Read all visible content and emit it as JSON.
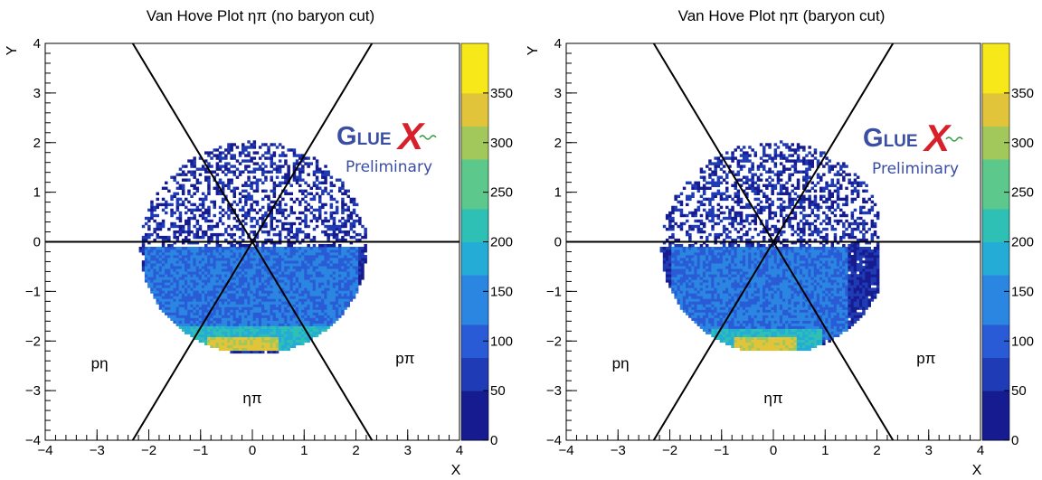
{
  "chart_data": [
    {
      "type": "heatmap",
      "title": "Van Hove Plot ηπ (no baryon cut)",
      "xlabel": "X",
      "ylabel": "Y",
      "xlim": [
        -4,
        4
      ],
      "ylim": [
        -4,
        4
      ],
      "x_ticks": [
        "−4",
        "−3",
        "−2",
        "−1",
        "0",
        "1",
        "2",
        "3",
        "4"
      ],
      "y_ticks": [
        "−4",
        "−3",
        "−2",
        "−1",
        "0",
        "1",
        "2",
        "3",
        "4"
      ],
      "colorbar": {
        "range": [
          0,
          400
        ],
        "ticks": [
          "0",
          "50",
          "100",
          "150",
          "200",
          "250",
          "300",
          "350"
        ]
      },
      "region_labels": [
        {
          "text": "pη",
          "x": -2.95,
          "y": -2.55
        },
        {
          "text": "pπ",
          "x": 2.95,
          "y": -2.45
        },
        {
          "text": "ηπ",
          "x": 0.0,
          "y": -3.25
        }
      ],
      "sector_lines": [
        {
          "from": [
            -4,
            0
          ],
          "to": [
            4,
            0
          ]
        },
        {
          "from": [
            -2.31,
            -4
          ],
          "to": [
            2.31,
            4
          ]
        },
        {
          "from": [
            -2.31,
            4
          ],
          "to": [
            2.31,
            -4
          ]
        }
      ],
      "density_regions": [
        {
          "x0": -2.2,
          "x1": 2.2,
          "y0": -2.25,
          "y1": 2.0,
          "level": "sparse"
        },
        {
          "x0": -2.1,
          "x1": 2.0,
          "y0": -1.9,
          "y1": -0.1,
          "level": "blue"
        },
        {
          "x0": -1.5,
          "x1": 1.7,
          "y0": -2.2,
          "y1": -1.7,
          "level": "cyan"
        },
        {
          "x0": -0.9,
          "x1": 0.5,
          "y0": -2.2,
          "y1": -1.95,
          "level": "yellow"
        }
      ],
      "grid": false
    },
    {
      "type": "heatmap",
      "title": "Van Hove Plot ηπ (baryon cut)",
      "xlabel": "X",
      "ylabel": "Y",
      "xlim": [
        -4,
        4
      ],
      "ylim": [
        -4,
        4
      ],
      "x_ticks": [
        "−4",
        "−3",
        "−2",
        "−1",
        "0",
        "1",
        "2",
        "3",
        "4"
      ],
      "y_ticks": [
        "−4",
        "−3",
        "−2",
        "−1",
        "0",
        "1",
        "2",
        "3",
        "4"
      ],
      "colorbar": {
        "range": [
          0,
          400
        ],
        "ticks": [
          "0",
          "50",
          "100",
          "150",
          "200",
          "250",
          "300",
          "350"
        ]
      },
      "region_labels": [
        {
          "text": "pη",
          "x": -2.95,
          "y": -2.55
        },
        {
          "text": "pπ",
          "x": 2.95,
          "y": -2.45
        },
        {
          "text": "ηπ",
          "x": 0.0,
          "y": -3.25
        }
      ],
      "sector_lines": [
        {
          "from": [
            -4,
            0
          ],
          "to": [
            4,
            0
          ]
        },
        {
          "from": [
            -2.31,
            -4
          ],
          "to": [
            2.31,
            4
          ]
        },
        {
          "from": [
            -2.31,
            4
          ],
          "to": [
            2.31,
            -4
          ]
        }
      ],
      "density_regions": [
        {
          "x0": -2.2,
          "x1": 2.0,
          "y0": -2.2,
          "y1": 2.0,
          "level": "sparse"
        },
        {
          "x0": -2.0,
          "x1": 1.4,
          "y0": -2.0,
          "y1": -0.1,
          "level": "blue"
        },
        {
          "x0": -1.2,
          "x1": 0.9,
          "y0": -2.2,
          "y1": -1.75,
          "level": "cyan"
        },
        {
          "x0": -0.8,
          "x1": 0.4,
          "y0": -2.2,
          "y1": -1.95,
          "level": "yellow"
        }
      ],
      "grid": false
    }
  ],
  "logo": {
    "wordmark": "GLUEX",
    "subtitle": "Preliminary",
    "colors": {
      "glue": "#3a4ea3",
      "x": "#d8202a",
      "wave": "#2e9a3c",
      "subtitle": "#3a4ea3"
    }
  },
  "colors": {
    "palette": [
      "#161c8f",
      "#1f3bb5",
      "#2a5bd6",
      "#2a86e0",
      "#24abd6",
      "#2ec0b4",
      "#5cc88c",
      "#a2c85c",
      "#e1c43a",
      "#f7e81a"
    ]
  }
}
